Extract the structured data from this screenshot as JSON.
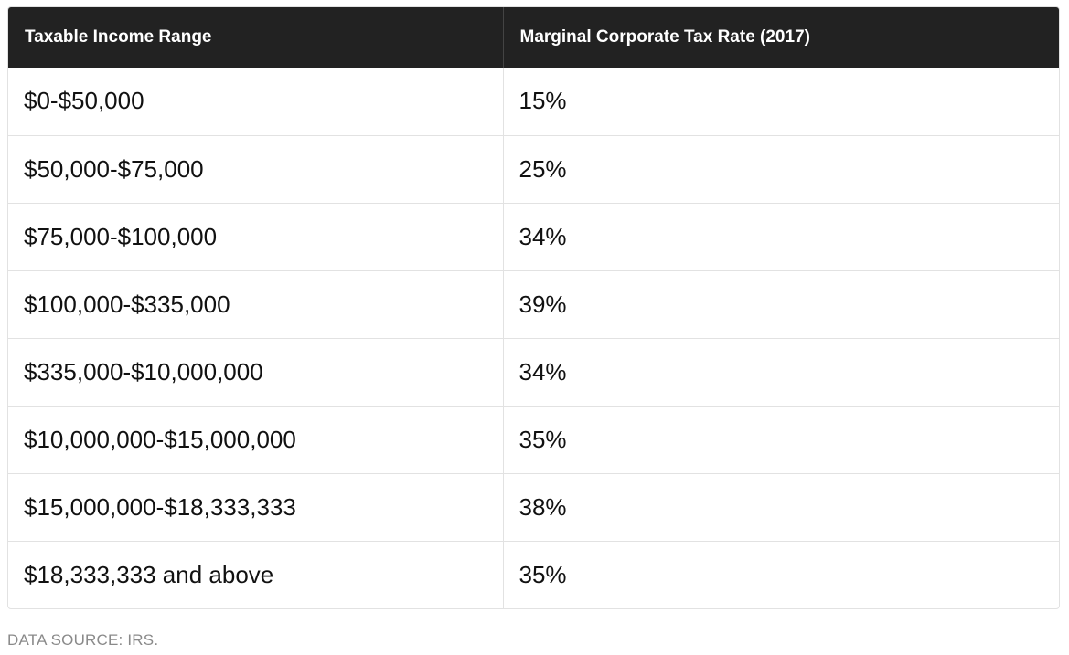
{
  "table": {
    "headers": {
      "income": "Taxable Income Range",
      "rate": "Marginal Corporate Tax Rate (2017)"
    },
    "rows": [
      {
        "income": "$0-$50,000",
        "rate": "15%"
      },
      {
        "income": "$50,000-$75,000",
        "rate": "25%"
      },
      {
        "income": "$75,000-$100,000",
        "rate": "34%"
      },
      {
        "income": "$100,000-$335,000",
        "rate": "39%"
      },
      {
        "income": "$335,000-$10,000,000",
        "rate": "34%"
      },
      {
        "income": "$10,000,000-$15,000,000",
        "rate": "35%"
      },
      {
        "income": "$15,000,000-$18,333,333",
        "rate": "38%"
      },
      {
        "income": "$18,333,333 and above",
        "rate": "35%"
      }
    ]
  },
  "source": "DATA SOURCE: IRS.",
  "colors": {
    "header_bg": "#222222",
    "header_text": "#ffffff",
    "border": "#e2e2e2",
    "source_text": "#8a8a8a"
  }
}
